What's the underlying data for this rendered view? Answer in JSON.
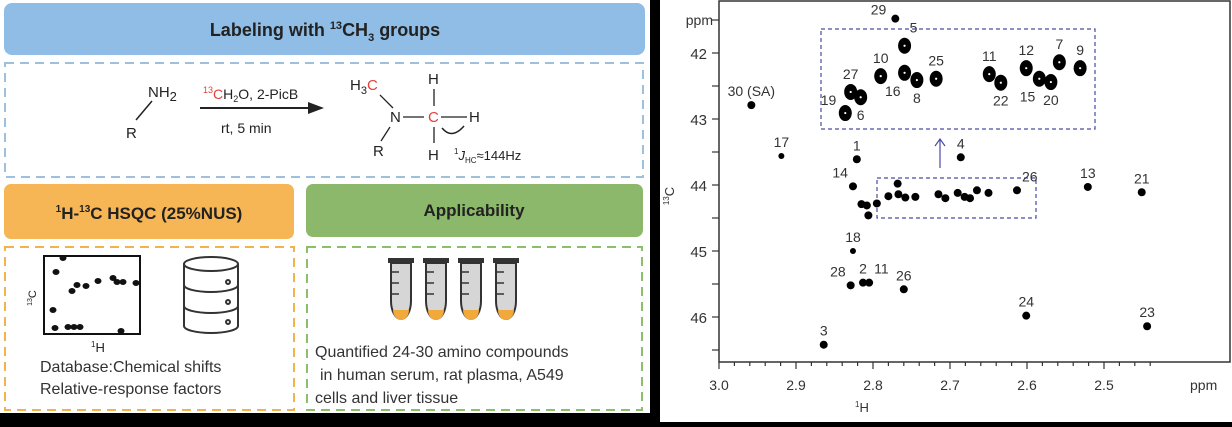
{
  "header": {
    "pre": "Labeling with ",
    "iso": "13",
    "ch": "CH",
    "sub": "3",
    "post": " groups"
  },
  "reaction": {
    "reactant_nh": "NH",
    "reactant_sub": "2",
    "reactant_r": "R",
    "reagent_iso": "13",
    "reagent_c": "C",
    "reagent_rest": "H",
    "reagent_sub": "2",
    "reagent_tail": "O, 2-PicB",
    "conditions": "rt, 5 min",
    "product_h": "H",
    "product_h_sub": "3",
    "product_c_methyl": "C",
    "product_n": "N",
    "product_c": "C",
    "product_h_top": "H",
    "product_h_right": "H",
    "product_h_bottom": "H",
    "product_r": "R",
    "coupling_sup": "1",
    "coupling_j": "J",
    "coupling_sub": "HC",
    "coupling_value": "≈144Hz"
  },
  "hsqc": {
    "sup1": "1",
    "h": "H-",
    "sup2": "13",
    "rest": "C HSQC (25%NUS)",
    "axis_c_sup": "13",
    "axis_c": "C",
    "axis_h_sup": "1",
    "axis_h": "H",
    "db_line1": "Database:Chemical shifts",
    "db_line2": "Relative-response factors"
  },
  "applicability": {
    "title": "Applicability",
    "lines": [
      "Quantified 24-30 amino compounds",
      "in human serum, rat plasma, A549",
      "cells and liver tissue"
    ]
  },
  "colors": {
    "blue": "#8fbde6",
    "orange": "#f7b655",
    "green": "#8bb86a",
    "red": "#e0423a",
    "box_dash": "#4a4aa8"
  },
  "chart_data": {
    "type": "scatter",
    "title": "",
    "xlabel_sup": "1",
    "xlabel": "H",
    "ylabel_sup": "13",
    "ylabel": "C",
    "x_unit": "ppm",
    "y_unit": "ppm",
    "xlim": [
      3.0,
      2.436
    ],
    "ylim": [
      41.2,
      46.7
    ],
    "xticks": [
      "3.0",
      "2.9",
      "2.8",
      "2.7",
      "2.6",
      "2.5"
    ],
    "yticks": [
      "42",
      "43",
      "44",
      "45",
      "46"
    ],
    "points": [
      {
        "label": "29",
        "x": 2.771,
        "y": 41.48,
        "pos": "l"
      },
      {
        "label": "30 (SA)",
        "x": 2.958,
        "y": 42.79,
        "pos": "t"
      },
      {
        "label": "17",
        "x": 2.919,
        "y": 43.56,
        "pos": "t",
        "size": "small"
      },
      {
        "label": "1",
        "x": 2.821,
        "y": 43.61,
        "pos": "t"
      },
      {
        "label": "4",
        "x": 2.686,
        "y": 43.58,
        "pos": "t"
      },
      {
        "label": "14",
        "x": 2.826,
        "y": 44.02,
        "pos": "tl"
      },
      {
        "label": "26",
        "x": 2.613,
        "y": 44.08,
        "pos": "tr"
      },
      {
        "label": "13",
        "x": 2.521,
        "y": 44.03,
        "pos": "t"
      },
      {
        "label": "21",
        "x": 2.451,
        "y": 44.11,
        "pos": "t"
      },
      {
        "label": "18",
        "x": 2.826,
        "y": 45.0,
        "pos": "t",
        "size": "small"
      },
      {
        "label": "28",
        "x": 2.829,
        "y": 45.52,
        "pos": "tl"
      },
      {
        "label": "2",
        "x": 2.813,
        "y": 45.48,
        "pos": "t"
      },
      {
        "label": "11",
        "x": 2.805,
        "y": 45.48,
        "pos": "tr"
      },
      {
        "label": "26",
        "x": 2.76,
        "y": 45.58,
        "pos": "t"
      },
      {
        "label": "24",
        "x": 2.601,
        "y": 45.98,
        "pos": "t"
      },
      {
        "label": "3",
        "x": 2.864,
        "y": 46.42,
        "pos": "t"
      },
      {
        "label": "23",
        "x": 2.444,
        "y": 46.14,
        "pos": "t"
      },
      {
        "label": "",
        "x": 2.815,
        "y": 44.29
      },
      {
        "label": "",
        "x": 2.808,
        "y": 44.31
      },
      {
        "label": "",
        "x": 2.806,
        "y": 44.46
      },
      {
        "label": "",
        "x": 2.795,
        "y": 44.28
      },
      {
        "label": "",
        "x": 2.78,
        "y": 44.17
      },
      {
        "label": "",
        "x": 2.768,
        "y": 43.98
      },
      {
        "label": "",
        "x": 2.767,
        "y": 44.14
      },
      {
        "label": "",
        "x": 2.758,
        "y": 44.19
      },
      {
        "label": "",
        "x": 2.745,
        "y": 44.18
      },
      {
        "label": "",
        "x": 2.715,
        "y": 44.14
      },
      {
        "label": "",
        "x": 2.706,
        "y": 44.2
      },
      {
        "label": "",
        "x": 2.69,
        "y": 44.12
      },
      {
        "label": "",
        "x": 2.681,
        "y": 44.18
      },
      {
        "label": "",
        "x": 2.674,
        "y": 44.2
      },
      {
        "label": "",
        "x": 2.665,
        "y": 44.08
      },
      {
        "label": "",
        "x": 2.65,
        "y": 44.12
      }
    ],
    "inset_points": [
      {
        "label": "19",
        "x": 2.836,
        "y": 42.91,
        "pos": "l"
      },
      {
        "label": "27",
        "x": 2.829,
        "y": 42.59,
        "pos": "t"
      },
      {
        "label": "6",
        "x": 2.816,
        "y": 42.67,
        "pos": "b"
      },
      {
        "label": "10",
        "x": 2.79,
        "y": 42.35,
        "pos": "t"
      },
      {
        "label": "5",
        "x": 2.759,
        "y": 41.89,
        "pos": "tr"
      },
      {
        "label": "16",
        "x": 2.759,
        "y": 42.3,
        "pos": "bl"
      },
      {
        "label": "8",
        "x": 2.743,
        "y": 42.41,
        "pos": "b"
      },
      {
        "label": "25",
        "x": 2.718,
        "y": 42.39,
        "pos": "t"
      },
      {
        "label": "11",
        "x": 2.649,
        "y": 42.32,
        "pos": "t"
      },
      {
        "label": "22",
        "x": 2.634,
        "y": 42.45,
        "pos": "b"
      },
      {
        "label": "12",
        "x": 2.601,
        "y": 42.23,
        "pos": "t"
      },
      {
        "label": "15",
        "x": 2.584,
        "y": 42.39,
        "pos": "bl"
      },
      {
        "label": "20",
        "x": 2.569,
        "y": 42.44,
        "pos": "b"
      },
      {
        "label": "7",
        "x": 2.558,
        "y": 42.14,
        "pos": "t"
      },
      {
        "label": "9",
        "x": 2.531,
        "y": 42.23,
        "pos": "t"
      }
    ]
  }
}
